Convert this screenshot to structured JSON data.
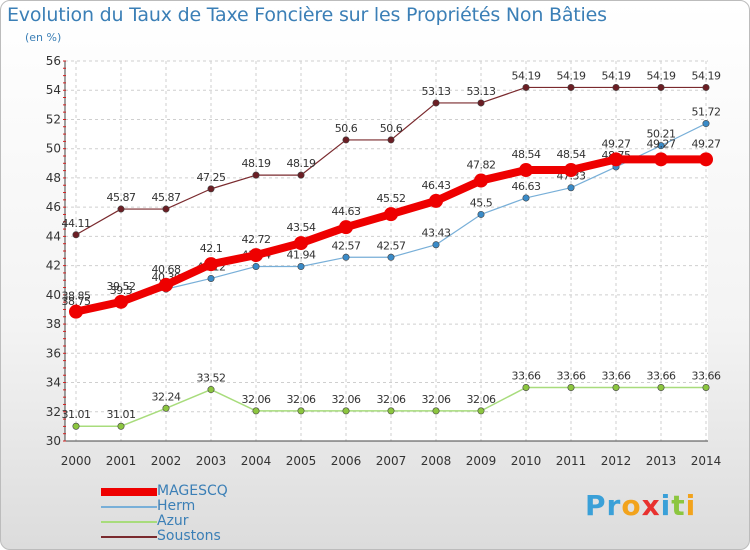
{
  "title": "Evolution du Taux de Taxe Foncière sur les Propriétés Non Bâties",
  "unit_label": "(en %)",
  "logo": {
    "text": "Proxiti",
    "letters": [
      "P",
      "r",
      "o",
      "x",
      "i",
      "t",
      "i"
    ],
    "colors": [
      "#3aa0d8",
      "#3aa0d8",
      "#f2a31c",
      "#e8312f",
      "#3aa0d8",
      "#8cc63f",
      "#f2a31c"
    ]
  },
  "chart_data": {
    "type": "line",
    "x": [
      "2000",
      "2001",
      "2002",
      "2003",
      "2004",
      "2005",
      "2006",
      "2007",
      "2008",
      "2009",
      "2010",
      "2011",
      "2012",
      "2013",
      "2014"
    ],
    "ylim": [
      30,
      56
    ],
    "yticks": [
      30,
      32,
      34,
      36,
      38,
      40,
      42,
      44,
      46,
      48,
      50,
      52,
      54,
      56
    ],
    "grid": true,
    "legend_position": "bottom-left",
    "series": [
      {
        "name": "Soustons",
        "color": "#7a2a2e",
        "width": 1.2,
        "marker": "#6b1e24",
        "values": [
          44.11,
          45.87,
          45.87,
          47.25,
          48.19,
          48.19,
          50.6,
          50.6,
          53.13,
          53.13,
          54.19,
          54.19,
          54.19,
          54.19,
          54.19
        ],
        "labels": [
          "44.11",
          "45.87",
          "45.87",
          "47.25",
          "48.19",
          "48.19",
          "50.6",
          "50.6",
          "53.13",
          "53.13",
          "54.19",
          "54.19",
          "54.19",
          "54.19",
          "54.19"
        ]
      },
      {
        "name": "Azur",
        "color": "#a8dc7c",
        "width": 1.5,
        "marker": "#8cc63f",
        "values": [
          31.01,
          31.01,
          32.24,
          33.52,
          32.06,
          32.06,
          32.06,
          32.06,
          32.06,
          32.06,
          33.66,
          33.66,
          33.66,
          33.66,
          33.66
        ],
        "labels": [
          "31.01",
          "31.01",
          "32.24",
          "33.52",
          "32.06",
          "32.06",
          "32.06",
          "32.06",
          "32.06",
          "32.06",
          "33.66",
          "33.66",
          "33.66",
          "33.66",
          "33.66"
        ]
      },
      {
        "name": "Herm",
        "color": "#78afd8",
        "width": 1.2,
        "marker": "#3a8bc8",
        "values": [
          38.75,
          39.5,
          40.39,
          41.12,
          41.94,
          41.94,
          42.57,
          42.57,
          43.43,
          45.5,
          46.63,
          47.33,
          48.75,
          50.21,
          51.72
        ],
        "labels": [
          "38.75",
          "39.5",
          "40.39",
          "41.12",
          "41.94",
          "41.94",
          "42.57",
          "42.57",
          "43.43",
          "45.5",
          "46.63",
          "47.33",
          "48.75",
          "50.21",
          "51.72"
        ]
      },
      {
        "name": "MAGESCQ",
        "color": "#ee0000",
        "width": 8,
        "marker": "#ee0000",
        "values": [
          38.85,
          39.52,
          40.68,
          42.1,
          42.72,
          43.54,
          44.63,
          45.52,
          46.43,
          47.82,
          48.54,
          48.54,
          49.27,
          49.27,
          49.27
        ],
        "labels": [
          "38.85",
          "39.52",
          "40.68",
          "42.1",
          "42.72",
          "43.54",
          "44.63",
          "45.52",
          "46.43",
          "47.82",
          "48.54",
          "48.54",
          "49.27",
          "49.27",
          "49.27"
        ]
      }
    ],
    "legend": [
      {
        "name": "MAGESCQ",
        "color": "#ee0000",
        "thickness": 8
      },
      {
        "name": "Herm",
        "color": "#78afd8",
        "thickness": 2
      },
      {
        "name": "Azur",
        "color": "#a8dc7c",
        "thickness": 2
      },
      {
        "name": "Soustons",
        "color": "#7a2a2e",
        "thickness": 2
      }
    ]
  }
}
